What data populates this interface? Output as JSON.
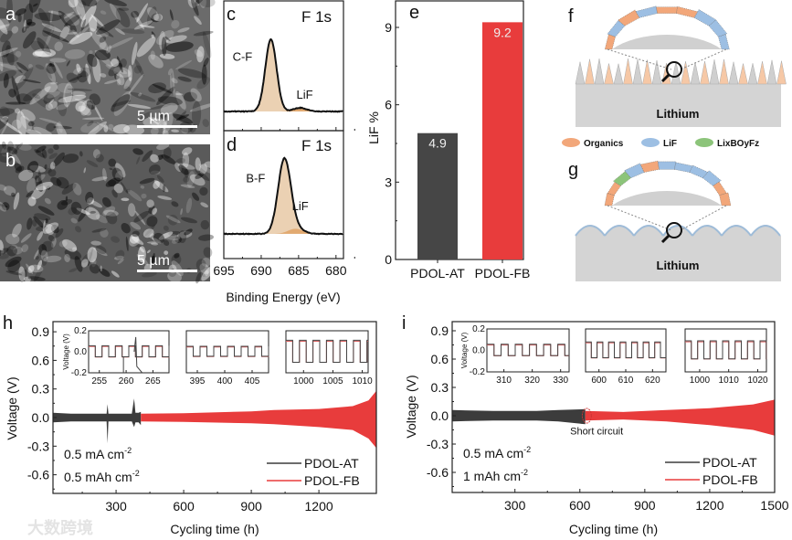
{
  "panels": {
    "a": "a",
    "b": "b",
    "c": "c",
    "d": "d",
    "e": "e",
    "f": "f",
    "g": "g",
    "h": "h",
    "i": "i"
  },
  "sem": {
    "scale_bar_a": "5 µm",
    "scale_bar_b": "5 µm"
  },
  "schematic": {
    "lithium_f": "Lithium",
    "lithium_g": "Lithium",
    "legend": [
      {
        "label": "Organics",
        "color": "#f2a77a"
      },
      {
        "label": "LiF",
        "color": "#9dbfe3"
      },
      {
        "label": "LixBOyFz",
        "color": "#8cc47a"
      }
    ]
  },
  "watermark": "大数跨境",
  "chart_data": [
    {
      "id": "c",
      "type": "line",
      "title": "F 1s",
      "xlabel": "Binding Energy (eV)",
      "xlim": [
        695,
        679
      ],
      "xticks": [
        695,
        690,
        685,
        680
      ],
      "peaks": [
        {
          "label": "C-F",
          "center": 688.7,
          "sigma": 0.75,
          "height": 1.0
        },
        {
          "label": "LiF",
          "center": 684.8,
          "sigma": 0.9,
          "height": 0.05
        }
      ],
      "fill_color": "#e8c9a6"
    },
    {
      "id": "d",
      "type": "line",
      "title": "F 1s",
      "xlabel": "Binding Energy (eV)",
      "xlim": [
        695,
        679
      ],
      "xticks": [
        695,
        690,
        685,
        680
      ],
      "peaks": [
        {
          "label": "B-F",
          "center": 686.9,
          "sigma": 0.85,
          "height": 1.0
        },
        {
          "label": "LiF",
          "center": 685.4,
          "sigma": 1.0,
          "height": 0.07
        }
      ],
      "fill_color": "#e8c9a6"
    },
    {
      "id": "e",
      "type": "bar",
      "ylabel": "LiF %",
      "ylim": [
        0,
        10
      ],
      "yticks": [
        0,
        3,
        6,
        9
      ],
      "categories": [
        "PDOL-AT",
        "PDOL-FB"
      ],
      "values": [
        4.9,
        9.2
      ],
      "value_labels": [
        "4.9",
        "9.2"
      ],
      "colors": [
        "#464646",
        "#e83c3c"
      ]
    },
    {
      "id": "h",
      "type": "area",
      "xlabel": "Cycling time (h)",
      "ylabel": "Voltage (V)",
      "xlim": [
        20,
        1455
      ],
      "ylim": [
        -0.8,
        1.0
      ],
      "xticks": [
        300,
        600,
        900,
        1200
      ],
      "yticks": [
        "0.9",
        "0.6",
        "0.3",
        "0.0",
        "-0.3",
        "-0.6"
      ],
      "conditions": [
        "0.5 mA cm",
        "0.5 mAh cm"
      ],
      "conditions_sup": "-2",
      "series": [
        {
          "name": "PDOL-AT",
          "color": "#3c3c3c",
          "envelope": [
            [
              20,
              0.05,
              -0.05
            ],
            [
              100,
              0.04,
              -0.04
            ],
            [
              250,
              0.04,
              -0.04
            ],
            [
              258,
              0.04,
              -0.04
            ],
            [
              262,
              0.14,
              -0.27
            ],
            [
              266,
              0.04,
              -0.04
            ],
            [
              370,
              0.04,
              -0.04
            ],
            [
              380,
              0.2,
              -0.1
            ],
            [
              386,
              0.05,
              -0.05
            ],
            [
              400,
              0.05,
              -0.05
            ],
            [
              410,
              0.06,
              -0.08
            ]
          ]
        },
        {
          "name": "PDOL-FB",
          "color": "#e83c3c",
          "envelope": [
            [
              410,
              0.04,
              -0.04
            ],
            [
              600,
              0.045,
              -0.045
            ],
            [
              900,
              0.065,
              -0.06
            ],
            [
              1000,
              0.08,
              -0.07
            ],
            [
              1200,
              0.09,
              -0.1
            ],
            [
              1350,
              0.12,
              -0.13
            ],
            [
              1420,
              0.18,
              -0.22
            ],
            [
              1455,
              0.28,
              -0.32
            ]
          ]
        }
      ],
      "insets": [
        {
          "xlim": [
            253,
            268
          ],
          "xticks": [
            255,
            260,
            265
          ],
          "period": 2.5,
          "amp": 0.05,
          "at_glitch": true
        },
        {
          "xlim": [
            393,
            408
          ],
          "xticks": [
            395,
            400,
            405
          ],
          "period": 2.5,
          "amp": 0.045,
          "at_glitch": false
        },
        {
          "xlim": [
            997,
            1011
          ],
          "xticks": [
            1000,
            1005,
            1010
          ],
          "period": 2.3,
          "amp": 0.1,
          "at_glitch": false
        }
      ],
      "inset_ylabel": "Voltage (V)",
      "inset_yticks": [
        "0.2",
        "0.0",
        "-0.2"
      ]
    },
    {
      "id": "i",
      "type": "area",
      "xlabel": "Cycling time (h)",
      "ylabel": "Voltage (V)",
      "xlim": [
        10,
        1500
      ],
      "ylim": [
        -0.8,
        1.0
      ],
      "xticks": [
        300,
        600,
        900,
        1200,
        1500
      ],
      "yticks": [
        "0.9",
        "0.6",
        "0.3",
        "0.0",
        "-0.3",
        "-0.6"
      ],
      "conditions": [
        "0.5 mA cm",
        "1 mAh cm"
      ],
      "conditions_sup": "-2",
      "annotation": "Short circuit",
      "series": [
        {
          "name": "PDOL-AT",
          "color": "#3c3c3c",
          "envelope": [
            [
              10,
              0.06,
              -0.06
            ],
            [
              200,
              0.05,
              -0.05
            ],
            [
              400,
              0.05,
              -0.05
            ],
            [
              500,
              0.06,
              -0.06
            ],
            [
              625,
              0.07,
              -0.09
            ]
          ]
        },
        {
          "name": "PDOL-FB",
          "color": "#e83c3c",
          "envelope": [
            [
              625,
              0.05,
              -0.05
            ],
            [
              800,
              0.04,
              -0.04
            ],
            [
              1000,
              0.06,
              -0.06
            ],
            [
              1200,
              0.08,
              -0.1
            ],
            [
              1400,
              0.12,
              -0.15
            ],
            [
              1500,
              0.17,
              -0.21
            ]
          ]
        }
      ],
      "insets": [
        {
          "xlim": [
            304,
            333
          ],
          "xticks": [
            310,
            320,
            330
          ],
          "period": 5,
          "amp": 0.05,
          "at_glitch": false
        },
        {
          "xlim": [
            595,
            625
          ],
          "xticks": [
            600,
            610,
            620
          ],
          "period": 4.3,
          "amp": 0.07,
          "at_glitch": false
        },
        {
          "xlim": [
            995,
            1023
          ],
          "xticks": [
            1000,
            1010,
            1020
          ],
          "period": 4.3,
          "amp": 0.08,
          "at_glitch": false
        }
      ],
      "inset_ylabel": "Voltage (V)",
      "inset_yticks": [
        "0.2",
        "0.0",
        "-0.2"
      ]
    }
  ]
}
